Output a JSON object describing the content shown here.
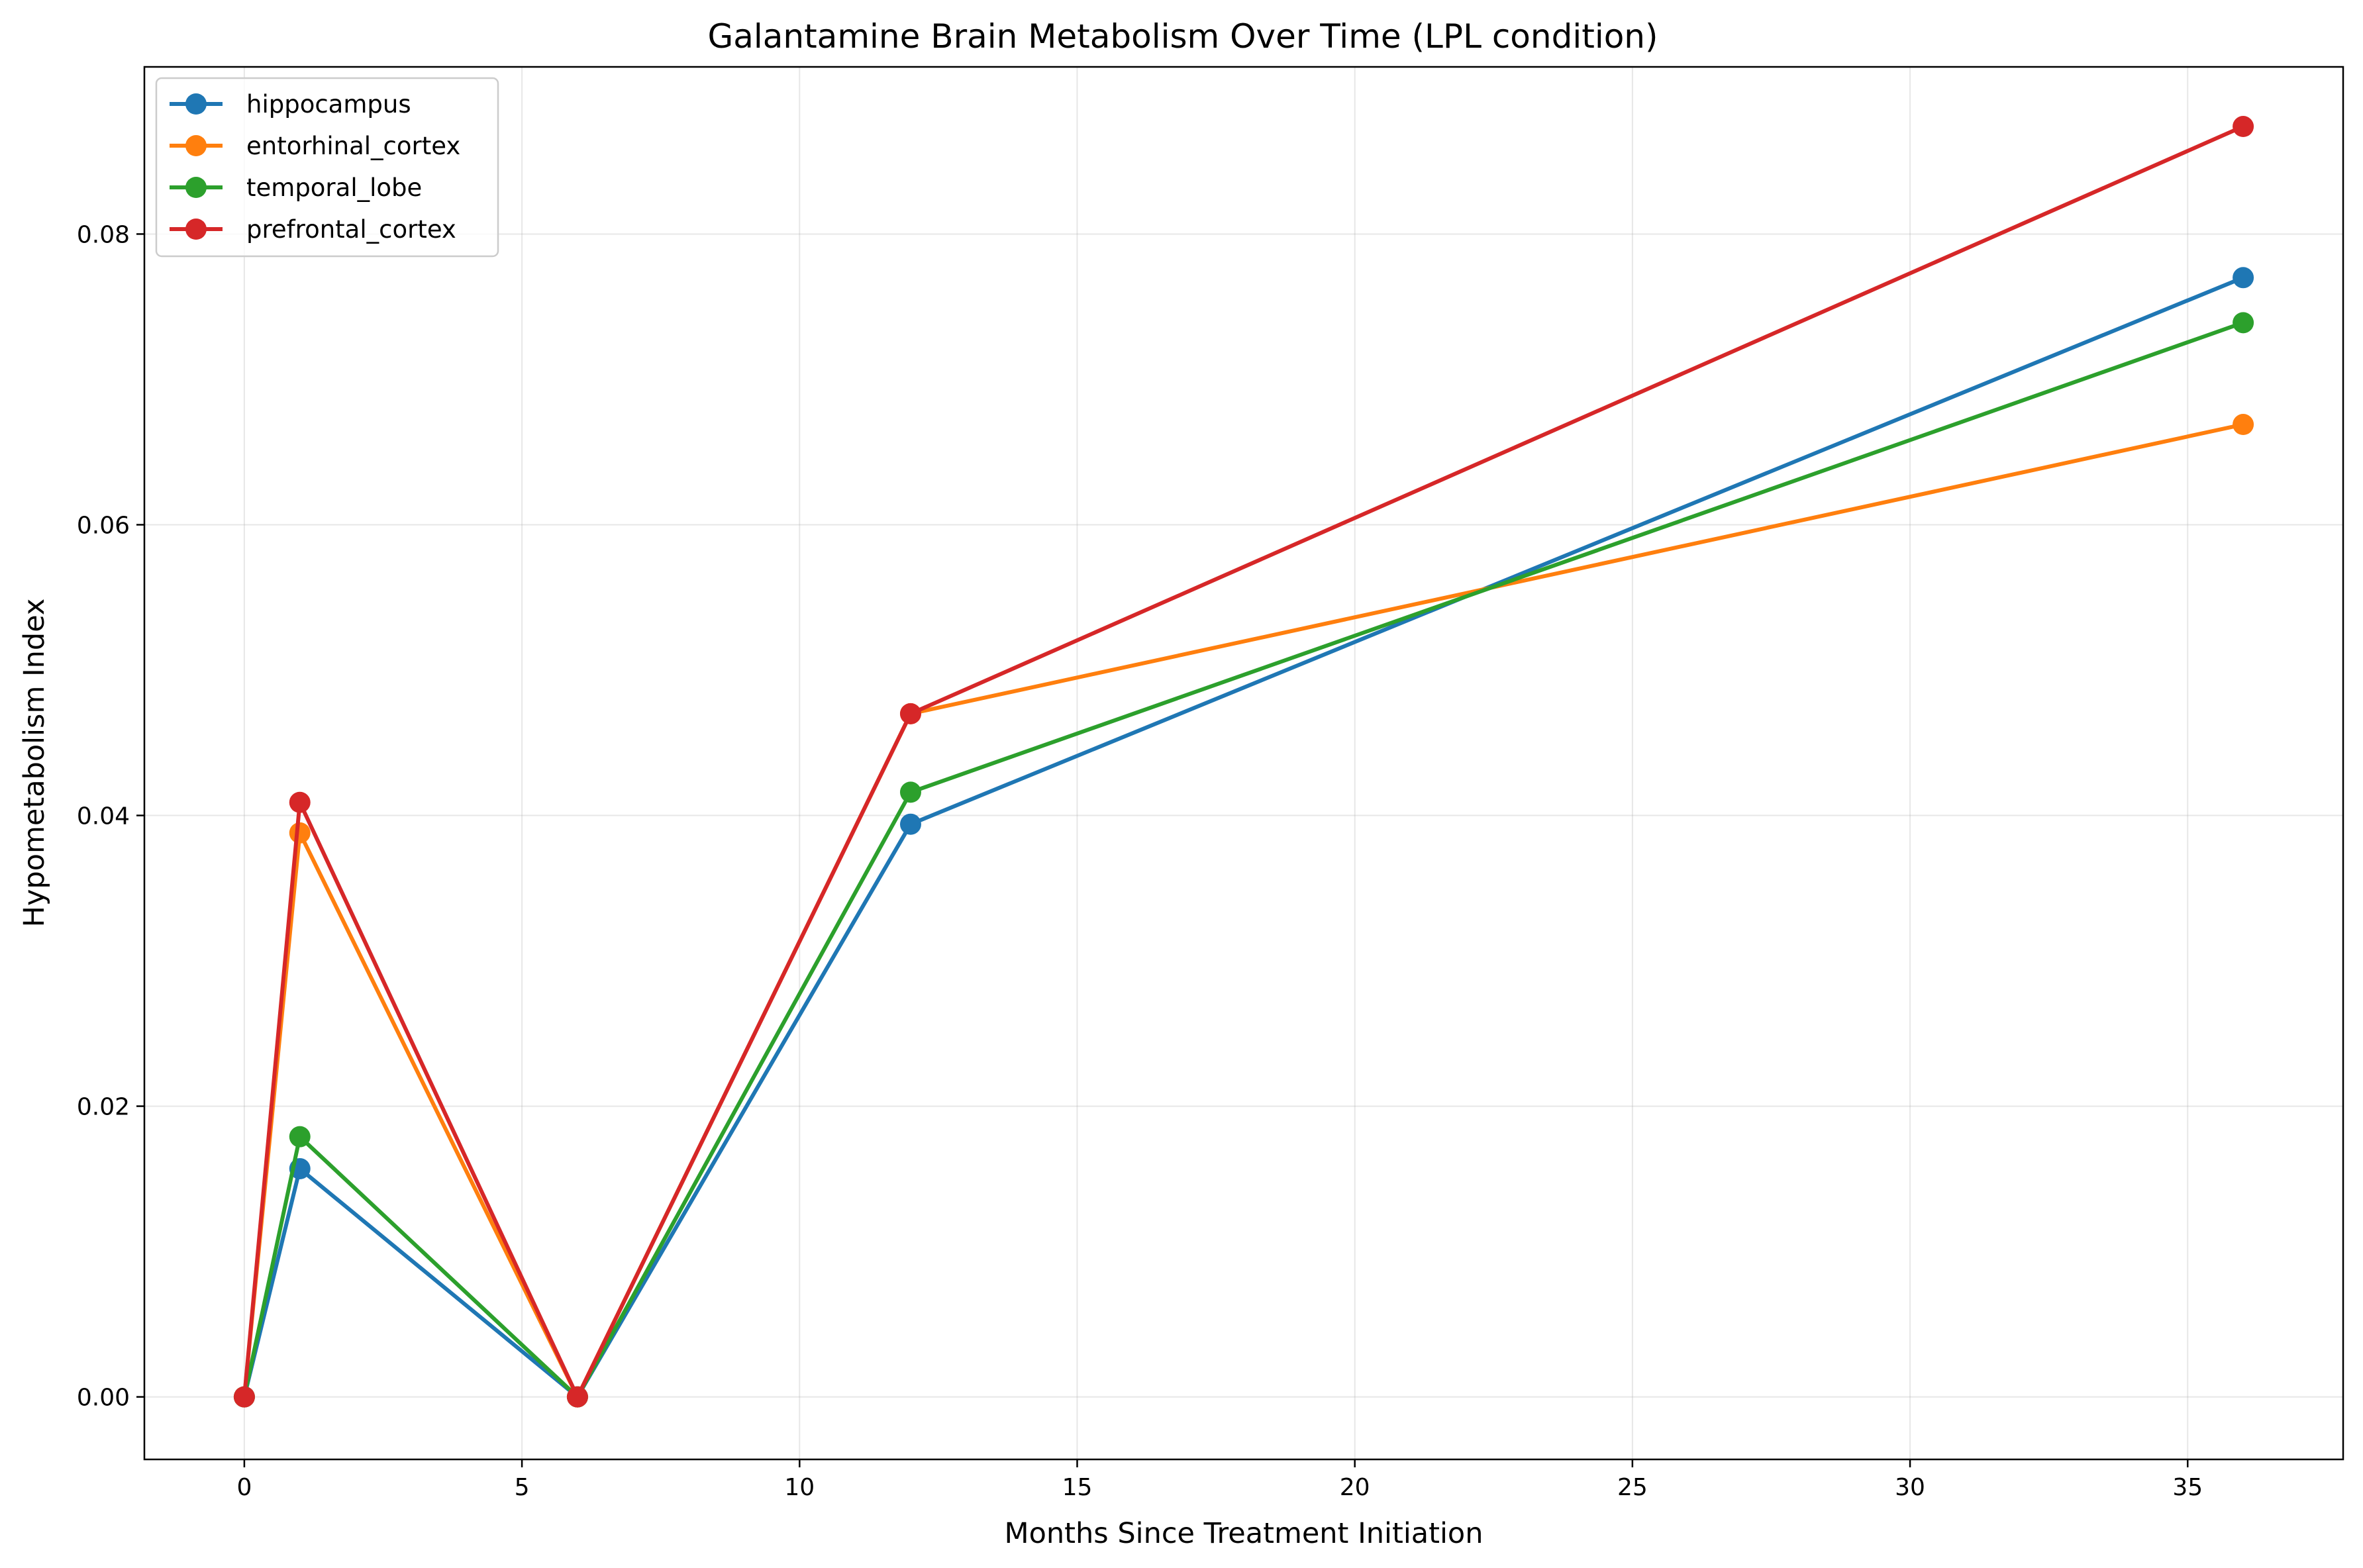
{
  "chart_data": {
    "type": "line",
    "title": "Galantamine Brain Metabolism Over Time (LPL condition)",
    "xlabel": "Months Since Treatment Initiation",
    "ylabel": "Hypometabolism Index",
    "x": [
      0,
      1,
      6,
      12,
      36
    ],
    "xlim": [
      -1.8,
      37.8
    ],
    "ylim": [
      -0.0043,
      0.0915
    ],
    "xticks": [
      0,
      5,
      10,
      15,
      20,
      25,
      30,
      35
    ],
    "yticks": [
      0.0,
      0.02,
      0.04,
      0.06,
      0.08
    ],
    "xtick_labels": [
      "0",
      "5",
      "10",
      "15",
      "20",
      "25",
      "30",
      "35"
    ],
    "ytick_labels": [
      "0.00",
      "0.02",
      "0.04",
      "0.06",
      "0.08"
    ],
    "grid": true,
    "legend_position": "top-left",
    "series": [
      {
        "name": "hippocampus",
        "color": "#1f77b4",
        "values": [
          0.0,
          0.0157,
          0.0,
          0.0394,
          0.077
        ]
      },
      {
        "name": "entorhinal_cortex",
        "color": "#ff7f0e",
        "values": [
          0.0,
          0.0388,
          0.0,
          0.047,
          0.0669
        ]
      },
      {
        "name": "temporal_lobe",
        "color": "#2ca02c",
        "values": [
          0.0,
          0.0179,
          0.0,
          0.0416,
          0.0739
        ]
      },
      {
        "name": "prefrontal_cortex",
        "color": "#d62728",
        "values": [
          0.0,
          0.0409,
          0.0,
          0.047,
          0.0874
        ]
      }
    ]
  }
}
